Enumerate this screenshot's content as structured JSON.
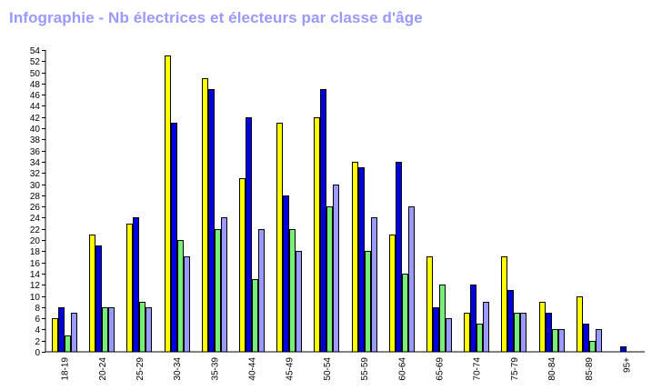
{
  "chart_data": {
    "type": "bar",
    "title": "Infographie - Nb électrices et électeurs par classe d'âge",
    "xlabel": "",
    "ylabel": "",
    "ylim": [
      0,
      54
    ],
    "ytick_step": 2,
    "grid": false,
    "legend": "none",
    "categories": [
      "18-19",
      "20-24",
      "25-29",
      "30-34",
      "35-39",
      "40-44",
      "45-49",
      "50-54",
      "55-59",
      "60-64",
      "65-69",
      "70-74",
      "75-79",
      "80-84",
      "85-89",
      "95+"
    ],
    "series": [
      {
        "color": "#ffff00",
        "values": [
          6,
          21,
          23,
          53,
          49,
          31,
          41,
          42,
          34,
          21,
          17,
          7,
          17,
          9,
          10,
          0
        ]
      },
      {
        "color": "#0000dd",
        "values": [
          8,
          19,
          24,
          41,
          47,
          42,
          28,
          47,
          33,
          34,
          8,
          12,
          11,
          7,
          5,
          1
        ]
      },
      {
        "color": "#77ee77",
        "values": [
          3,
          8,
          9,
          20,
          22,
          13,
          22,
          26,
          18,
          14,
          12,
          5,
          7,
          4,
          2,
          0
        ]
      },
      {
        "color": "#9999ff",
        "values": [
          7,
          8,
          8,
          17,
          24,
          22,
          18,
          30,
          24,
          26,
          6,
          9,
          7,
          4,
          4,
          0
        ]
      }
    ]
  }
}
